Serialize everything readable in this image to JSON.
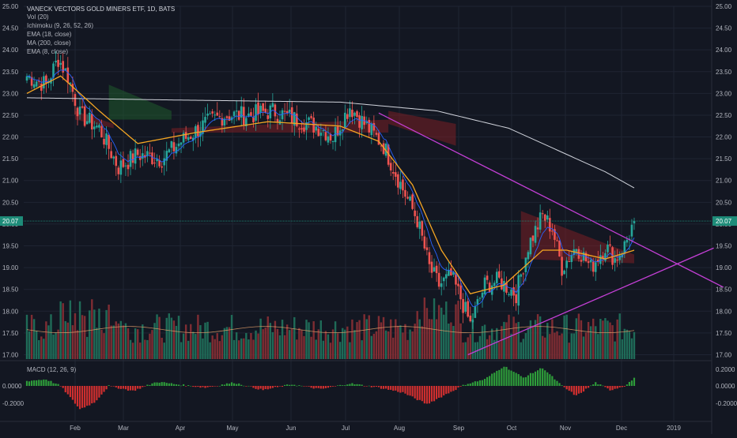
{
  "legend": {
    "title": "VANECK VECTORS GOLD MINERS ETF, 1D, BATS",
    "lines": [
      "Vol (20)",
      "Ichimoku (9, 26, 52, 26)",
      "EMA (18, close)",
      "MA (200, close)",
      "EMA (8, close)"
    ]
  },
  "macd_label": "MACD (12, 26, 9)",
  "colors": {
    "background": "#131722",
    "grid": "#1f2433",
    "text": "#b2b5be",
    "up": "#26a69a",
    "down": "#ef5350",
    "ema18": "#f5a623",
    "ema8": "#2962ff",
    "ma200": "#d1d4dc",
    "trendline": "#c43fd6",
    "cloud_red": "#7a1f25",
    "cloud_green": "#1f5a2c",
    "vol_up": "#1f6b58",
    "vol_down": "#7f2d33",
    "macd_up": "#2e9c3a",
    "macd_down": "#d02f2f",
    "last_price": "#1e8c79"
  },
  "chart_data": {
    "type": "candlestick",
    "title": "VANECK VECTORS GOLD MINERS ETF, 1D, BATS",
    "last_price": "20.07",
    "price_ticks": [
      "25.00",
      "24.50",
      "24.00",
      "23.50",
      "23.00",
      "22.50",
      "22.00",
      "21.50",
      "21.00",
      "20.50",
      "20.00",
      "19.50",
      "19.00",
      "18.50",
      "18.00",
      "17.50",
      "17.00"
    ],
    "macd_ticks": [
      "0.0000",
      "-0.2000"
    ],
    "macd_ticks_right": [
      "0.2000",
      "0.0000",
      "-0.2000"
    ],
    "x_ticks": [
      "Feb",
      "Mar",
      "Apr",
      "May",
      "Jun",
      "Jul",
      "Aug",
      "Sep",
      "Oct",
      "Nov",
      "Dec",
      "2019"
    ],
    "close_anchors": [
      [
        0,
        23.4
      ],
      [
        8,
        23.2
      ],
      [
        13,
        23.8
      ],
      [
        17,
        23.4
      ],
      [
        22,
        22.5
      ],
      [
        30,
        22.2
      ],
      [
        38,
        21.3
      ],
      [
        46,
        21.6
      ],
      [
        56,
        21.5
      ],
      [
        64,
        21.9
      ],
      [
        74,
        22.3
      ],
      [
        82,
        22.5
      ],
      [
        92,
        22.5
      ],
      [
        102,
        22.6
      ],
      [
        112,
        22.4
      ],
      [
        122,
        22.2
      ],
      [
        127,
        22.0
      ],
      [
        134,
        22.7
      ],
      [
        140,
        22.3
      ],
      [
        148,
        21.8
      ],
      [
        156,
        20.8
      ],
      [
        162,
        20.1
      ],
      [
        167,
        19.0
      ],
      [
        171,
        18.6
      ],
      [
        176,
        18.8
      ],
      [
        180,
        18.3
      ],
      [
        184,
        17.7
      ],
      [
        190,
        18.6
      ],
      [
        196,
        18.7
      ],
      [
        203,
        18.4
      ],
      [
        208,
        19.5
      ],
      [
        214,
        20.2
      ],
      [
        218,
        19.9
      ],
      [
        222,
        19.0
      ],
      [
        228,
        19.5
      ],
      [
        234,
        19.0
      ],
      [
        240,
        19.5
      ],
      [
        244,
        19.2
      ],
      [
        248,
        19.5
      ],
      [
        252,
        20.07
      ]
    ],
    "ma200": [
      [
        0,
        22.9
      ],
      [
        60,
        22.85
      ],
      [
        130,
        22.8
      ],
      [
        170,
        22.6
      ],
      [
        200,
        22.2
      ],
      [
        220,
        21.7
      ],
      [
        240,
        21.2
      ],
      [
        252,
        20.83
      ]
    ],
    "ema18_anchors": [
      [
        0,
        23.0
      ],
      [
        14,
        23.4
      ],
      [
        30,
        22.6
      ],
      [
        46,
        21.85
      ],
      [
        70,
        22.1
      ],
      [
        100,
        22.35
      ],
      [
        130,
        22.25
      ],
      [
        146,
        21.9
      ],
      [
        160,
        20.9
      ],
      [
        172,
        19.4
      ],
      [
        184,
        18.4
      ],
      [
        198,
        18.6
      ],
      [
        214,
        19.4
      ],
      [
        224,
        19.4
      ],
      [
        240,
        19.2
      ],
      [
        252,
        19.4
      ]
    ],
    "ichimoku_cloud": [
      {
        "x": [
          34,
          60
        ],
        "a": [
          23.2,
          22.6
        ],
        "b": [
          22.4,
          22.4
        ],
        "fill": "green"
      },
      {
        "x": [
          20,
          36
        ],
        "a": [
          22.6,
          22.3
        ],
        "b": [
          22.4,
          22.2
        ],
        "fill": "red"
      },
      {
        "x": [
          60,
          150
        ],
        "a": [
          22.2,
          22.4
        ],
        "b": [
          22.1,
          22.1
        ],
        "fill": "red"
      },
      {
        "x": [
          150,
          178
        ],
        "a": [
          22.3,
          21.8
        ],
        "b": [
          22.6,
          22.3
        ],
        "fill": "red"
      },
      {
        "x": [
          205,
          252
        ],
        "a": [
          20.3,
          19.3
        ],
        "b": [
          19.2,
          19.1
        ],
        "fill": "red"
      }
    ],
    "trendlines": [
      {
        "from": [
          146,
          22.55
        ],
        "to": [
          289,
          18.55
        ]
      },
      {
        "from": [
          183,
          17.0
        ],
        "to": [
          285,
          19.45
        ]
      }
    ],
    "volume_note": "volume bars drawn at chart bottom with 20-period average line",
    "macd_note": "MACD histogram in lower pane"
  }
}
